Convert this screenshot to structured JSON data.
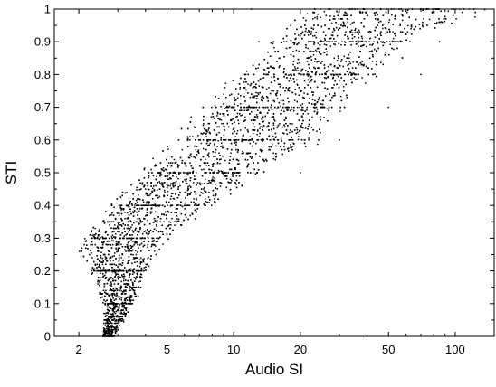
{
  "chart_data": {
    "type": "scatter",
    "title": "",
    "xlabel": "Audio SI",
    "ylabel": "STI",
    "x_scale": "log",
    "xlim": [
      1.55,
      150
    ],
    "ylim": [
      0,
      1
    ],
    "x_ticks": [
      2,
      5,
      10,
      20,
      50,
      100
    ],
    "x_tick_labels": [
      "2",
      "5",
      "10",
      "20",
      "50",
      "100"
    ],
    "y_ticks": [
      0,
      0.1,
      0.2,
      0.3,
      0.4,
      0.5,
      0.6,
      0.7,
      0.8,
      0.9,
      1
    ],
    "y_tick_labels": [
      "0",
      "0.1",
      "0.2",
      "0.3",
      "0.4",
      "0.5",
      "0.6",
      "0.7",
      "0.8",
      "0.9",
      "1"
    ],
    "grid": false,
    "marker_color": "#000000",
    "trend_bands": [
      {
        "y": 0.0,
        "x_min": 2.55,
        "x_max": 2.9
      },
      {
        "y": 0.1,
        "x_min": 2.55,
        "x_max": 3.6
      },
      {
        "y": 0.2,
        "x_min": 2.2,
        "x_max": 4.2
      },
      {
        "y": 0.26,
        "x_min": 1.95,
        "x_max": 4.8
      },
      {
        "y": 0.3,
        "x_min": 2.0,
        "x_max": 5.2
      },
      {
        "y": 0.4,
        "x_min": 2.6,
        "x_max": 8.5
      },
      {
        "y": 0.5,
        "x_min": 3.6,
        "x_max": 14
      },
      {
        "y": 0.6,
        "x_min": 4.8,
        "x_max": 26
      },
      {
        "y": 0.7,
        "x_min": 6.8,
        "x_max": 34
      },
      {
        "y": 0.8,
        "x_min": 10,
        "x_max": 48
      },
      {
        "y": 0.9,
        "x_min": 14,
        "x_max": 70
      },
      {
        "y": 1.0,
        "x_min": 20,
        "x_max": 150
      }
    ],
    "outliers": [
      {
        "x": 13,
        "y": 0.9
      },
      {
        "x": 12,
        "y": 1.0
      },
      {
        "x": 85,
        "y": 0.9
      },
      {
        "x": 70,
        "y": 0.8
      },
      {
        "x": 50,
        "y": 0.7
      },
      {
        "x": 30,
        "y": 0.6
      },
      {
        "x": 20,
        "y": 0.5
      }
    ],
    "point_count": 5200
  }
}
